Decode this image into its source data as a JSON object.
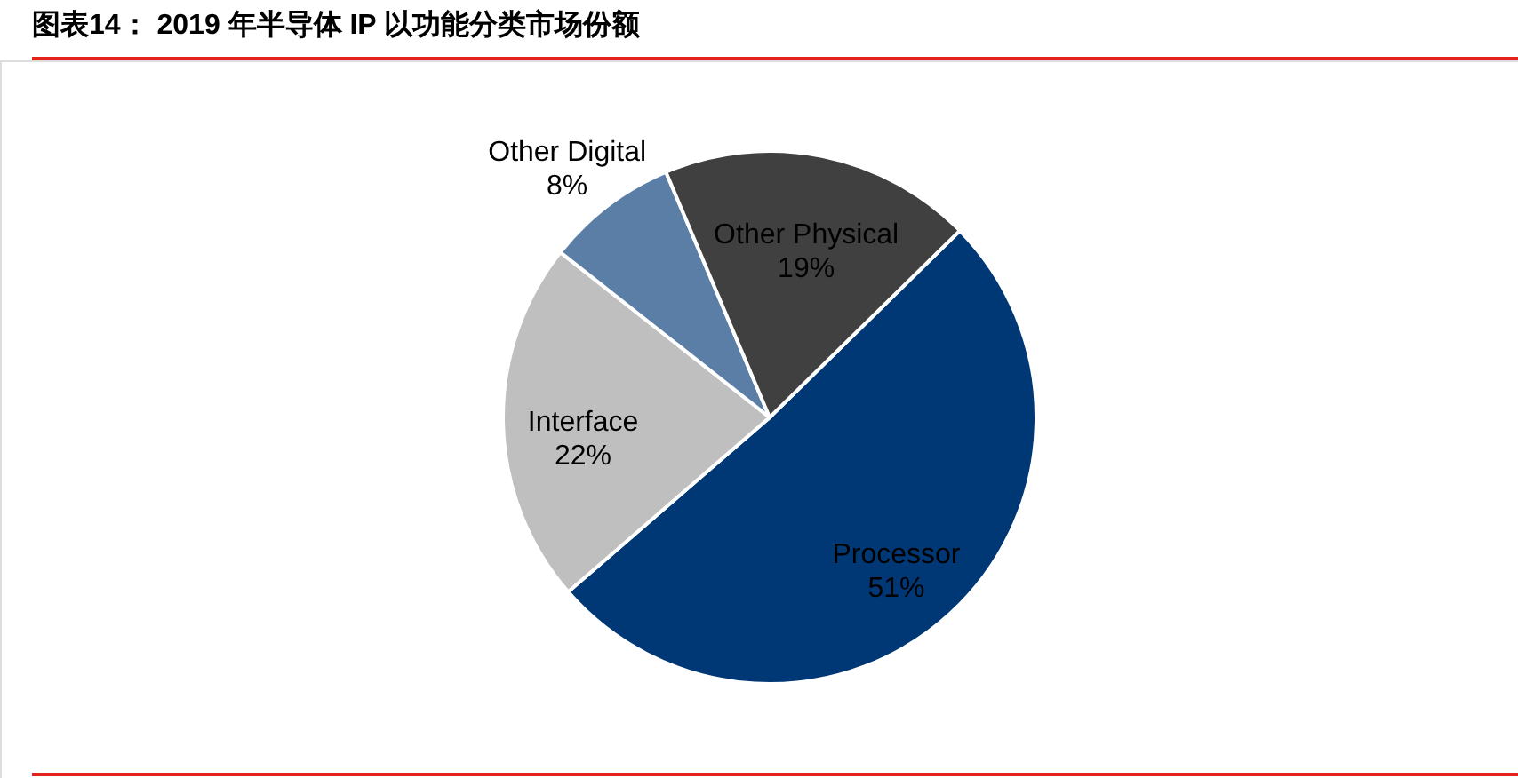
{
  "chart_data": {
    "type": "pie",
    "title": "图表14： 2019 年半导体 IP 以功能分类市场份额",
    "categories": [
      "Processor",
      "Interface",
      "Other Digital",
      "Other Physical"
    ],
    "values": [
      51,
      22,
      8,
      19
    ],
    "colors": [
      "#003876",
      "#bfbfbf",
      "#5b7ea6",
      "#404040"
    ],
    "value_labels": [
      "51%",
      "22%",
      "8%",
      "19%"
    ]
  }
}
